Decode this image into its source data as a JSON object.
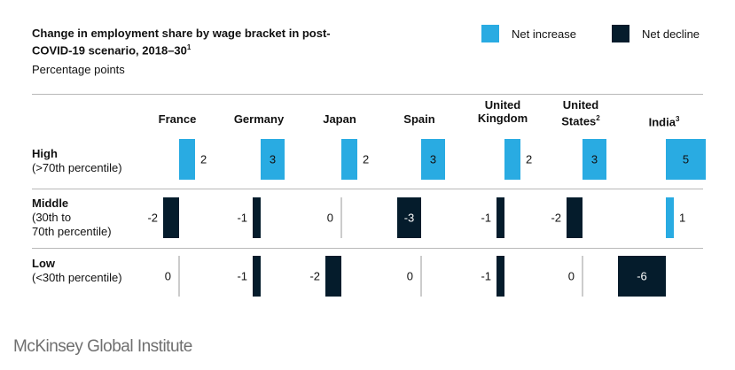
{
  "chart_data": {
    "type": "bar",
    "title": "Change in employment share by wage bracket in post-COVID-19 scenario, 2018–30",
    "title_superscript": "1",
    "subtitle": "Percentage points",
    "legend": [
      {
        "label": "Net increase",
        "color": "#29abe2"
      },
      {
        "label": "Net decline",
        "color": "#051c2c"
      }
    ],
    "countries": [
      {
        "name": "France",
        "lines": [
          "France"
        ],
        "sup": ""
      },
      {
        "name": "Germany",
        "lines": [
          "Germany"
        ],
        "sup": ""
      },
      {
        "name": "Japan",
        "lines": [
          "Japan"
        ],
        "sup": ""
      },
      {
        "name": "Spain",
        "lines": [
          "Spain"
        ],
        "sup": ""
      },
      {
        "name": "United Kingdom",
        "lines": [
          "United",
          "Kingdom"
        ],
        "sup": ""
      },
      {
        "name": "United States",
        "lines": [
          "United",
          "States"
        ],
        "sup": "2"
      },
      {
        "name": "India",
        "lines": [
          "India"
        ],
        "sup": "3"
      }
    ],
    "brackets": [
      {
        "label": "High",
        "detail": [
          "(>70th percentile)"
        ]
      },
      {
        "label": "Middle",
        "detail": [
          "(30th to",
          "70th percentile)"
        ]
      },
      {
        "label": "Low",
        "detail": [
          "(<30th percentile)"
        ]
      }
    ],
    "series": [
      {
        "name": "High",
        "values": [
          2,
          3,
          2,
          3,
          2,
          3,
          5
        ]
      },
      {
        "name": "Middle",
        "values": [
          -2,
          -1,
          0,
          -3,
          -1,
          -2,
          1
        ]
      },
      {
        "name": "Low",
        "values": [
          0,
          -1,
          -2,
          0,
          -1,
          0,
          -6
        ]
      }
    ]
  },
  "colors": {
    "increase": "#29abe2",
    "decline": "#051c2c"
  },
  "source": "McKinsey Global Institute"
}
